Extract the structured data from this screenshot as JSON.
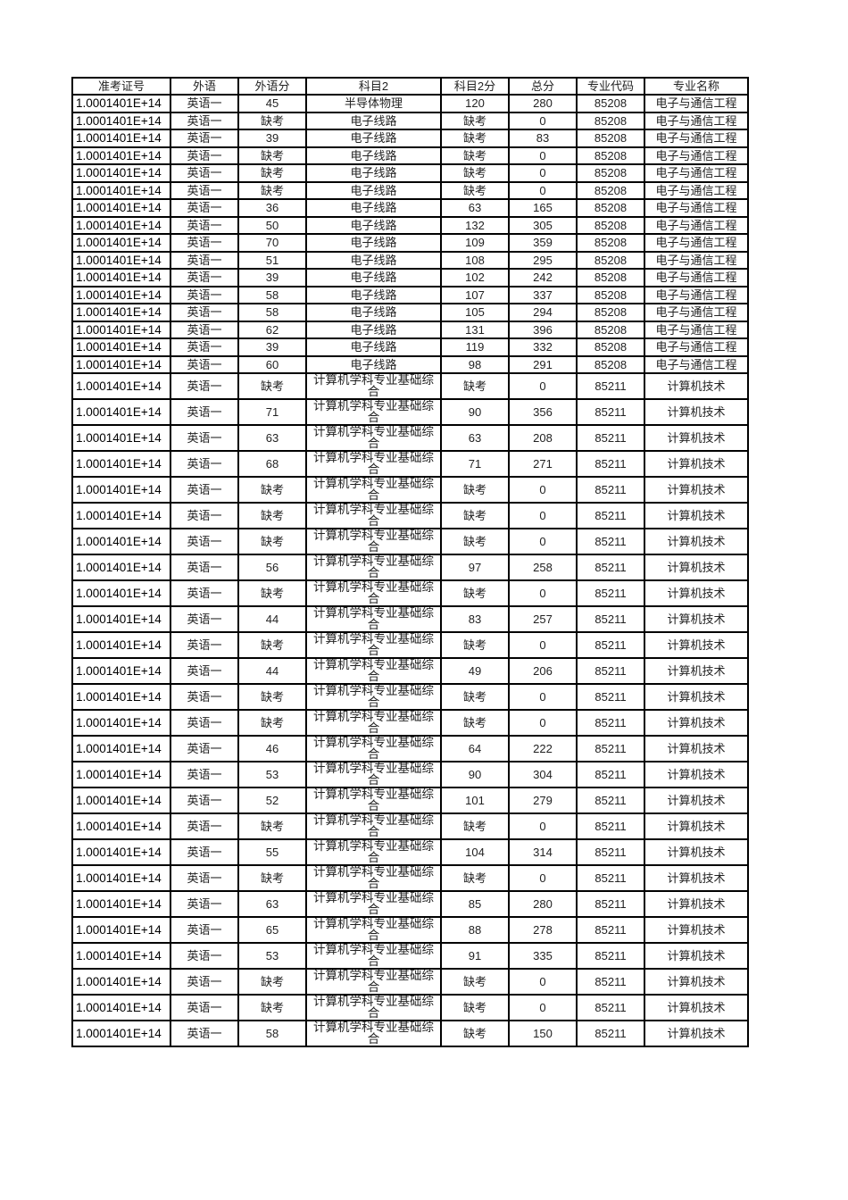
{
  "table": {
    "headers": [
      "准考证号",
      "外语",
      "外语分",
      "科目2",
      "科目2分",
      "总分",
      "专业代码",
      "专业名称"
    ],
    "rows": [
      [
        "1.0001401E+14",
        "英语一",
        "45",
        "半导体物理",
        "120",
        "280",
        "85208",
        "电子与通信工程"
      ],
      [
        "1.0001401E+14",
        "英语一",
        "缺考",
        "电子线路",
        "缺考",
        "0",
        "85208",
        "电子与通信工程"
      ],
      [
        "1.0001401E+14",
        "英语一",
        "39",
        "电子线路",
        "缺考",
        "83",
        "85208",
        "电子与通信工程"
      ],
      [
        "1.0001401E+14",
        "英语一",
        "缺考",
        "电子线路",
        "缺考",
        "0",
        "85208",
        "电子与通信工程"
      ],
      [
        "1.0001401E+14",
        "英语一",
        "缺考",
        "电子线路",
        "缺考",
        "0",
        "85208",
        "电子与通信工程"
      ],
      [
        "1.0001401E+14",
        "英语一",
        "缺考",
        "电子线路",
        "缺考",
        "0",
        "85208",
        "电子与通信工程"
      ],
      [
        "1.0001401E+14",
        "英语一",
        "36",
        "电子线路",
        "63",
        "165",
        "85208",
        "电子与通信工程"
      ],
      [
        "1.0001401E+14",
        "英语一",
        "50",
        "电子线路",
        "132",
        "305",
        "85208",
        "电子与通信工程"
      ],
      [
        "1.0001401E+14",
        "英语一",
        "70",
        "电子线路",
        "109",
        "359",
        "85208",
        "电子与通信工程"
      ],
      [
        "1.0001401E+14",
        "英语一",
        "51",
        "电子线路",
        "108",
        "295",
        "85208",
        "电子与通信工程"
      ],
      [
        "1.0001401E+14",
        "英语一",
        "39",
        "电子线路",
        "102",
        "242",
        "85208",
        "电子与通信工程"
      ],
      [
        "1.0001401E+14",
        "英语一",
        "58",
        "电子线路",
        "107",
        "337",
        "85208",
        "电子与通信工程"
      ],
      [
        "1.0001401E+14",
        "英语一",
        "58",
        "电子线路",
        "105",
        "294",
        "85208",
        "电子与通信工程"
      ],
      [
        "1.0001401E+14",
        "英语一",
        "62",
        "电子线路",
        "131",
        "396",
        "85208",
        "电子与通信工程"
      ],
      [
        "1.0001401E+14",
        "英语一",
        "39",
        "电子线路",
        "119",
        "332",
        "85208",
        "电子与通信工程"
      ],
      [
        "1.0001401E+14",
        "英语一",
        "60",
        "电子线路",
        "98",
        "291",
        "85208",
        "电子与通信工程"
      ],
      [
        "1.0001401E+14",
        "英语一",
        "缺考",
        "计算机学科专业基础综合",
        "缺考",
        "0",
        "85211",
        "计算机技术"
      ],
      [
        "1.0001401E+14",
        "英语一",
        "71",
        "计算机学科专业基础综合",
        "90",
        "356",
        "85211",
        "计算机技术"
      ],
      [
        "1.0001401E+14",
        "英语一",
        "63",
        "计算机学科专业基础综合",
        "63",
        "208",
        "85211",
        "计算机技术"
      ],
      [
        "1.0001401E+14",
        "英语一",
        "68",
        "计算机学科专业基础综合",
        "71",
        "271",
        "85211",
        "计算机技术"
      ],
      [
        "1.0001401E+14",
        "英语一",
        "缺考",
        "计算机学科专业基础综合",
        "缺考",
        "0",
        "85211",
        "计算机技术"
      ],
      [
        "1.0001401E+14",
        "英语一",
        "缺考",
        "计算机学科专业基础综合",
        "缺考",
        "0",
        "85211",
        "计算机技术"
      ],
      [
        "1.0001401E+14",
        "英语一",
        "缺考",
        "计算机学科专业基础综合",
        "缺考",
        "0",
        "85211",
        "计算机技术"
      ],
      [
        "1.0001401E+14",
        "英语一",
        "56",
        "计算机学科专业基础综合",
        "97",
        "258",
        "85211",
        "计算机技术"
      ],
      [
        "1.0001401E+14",
        "英语一",
        "缺考",
        "计算机学科专业基础综合",
        "缺考",
        "0",
        "85211",
        "计算机技术"
      ],
      [
        "1.0001401E+14",
        "英语一",
        "44",
        "计算机学科专业基础综合",
        "83",
        "257",
        "85211",
        "计算机技术"
      ],
      [
        "1.0001401E+14",
        "英语一",
        "缺考",
        "计算机学科专业基础综合",
        "缺考",
        "0",
        "85211",
        "计算机技术"
      ],
      [
        "1.0001401E+14",
        "英语一",
        "44",
        "计算机学科专业基础综合",
        "49",
        "206",
        "85211",
        "计算机技术"
      ],
      [
        "1.0001401E+14",
        "英语一",
        "缺考",
        "计算机学科专业基础综合",
        "缺考",
        "0",
        "85211",
        "计算机技术"
      ],
      [
        "1.0001401E+14",
        "英语一",
        "缺考",
        "计算机学科专业基础综合",
        "缺考",
        "0",
        "85211",
        "计算机技术"
      ],
      [
        "1.0001401E+14",
        "英语一",
        "46",
        "计算机学科专业基础综合",
        "64",
        "222",
        "85211",
        "计算机技术"
      ],
      [
        "1.0001401E+14",
        "英语一",
        "53",
        "计算机学科专业基础综合",
        "90",
        "304",
        "85211",
        "计算机技术"
      ],
      [
        "1.0001401E+14",
        "英语一",
        "52",
        "计算机学科专业基础综合",
        "101",
        "279",
        "85211",
        "计算机技术"
      ],
      [
        "1.0001401E+14",
        "英语一",
        "缺考",
        "计算机学科专业基础综合",
        "缺考",
        "0",
        "85211",
        "计算机技术"
      ],
      [
        "1.0001401E+14",
        "英语一",
        "55",
        "计算机学科专业基础综合",
        "104",
        "314",
        "85211",
        "计算机技术"
      ],
      [
        "1.0001401E+14",
        "英语一",
        "缺考",
        "计算机学科专业基础综合",
        "缺考",
        "0",
        "85211",
        "计算机技术"
      ],
      [
        "1.0001401E+14",
        "英语一",
        "63",
        "计算机学科专业基础综合",
        "85",
        "280",
        "85211",
        "计算机技术"
      ],
      [
        "1.0001401E+14",
        "英语一",
        "65",
        "计算机学科专业基础综合",
        "88",
        "278",
        "85211",
        "计算机技术"
      ],
      [
        "1.0001401E+14",
        "英语一",
        "53",
        "计算机学科专业基础综合",
        "91",
        "335",
        "85211",
        "计算机技术"
      ],
      [
        "1.0001401E+14",
        "英语一",
        "缺考",
        "计算机学科专业基础综合",
        "缺考",
        "0",
        "85211",
        "计算机技术"
      ],
      [
        "1.0001401E+14",
        "英语一",
        "缺考",
        "计算机学科专业基础综合",
        "缺考",
        "0",
        "85211",
        "计算机技术"
      ],
      [
        "1.0001401E+14",
        "英语一",
        "58",
        "计算机学科专业基础综合",
        "缺考",
        "150",
        "85211",
        "计算机技术"
      ]
    ]
  }
}
